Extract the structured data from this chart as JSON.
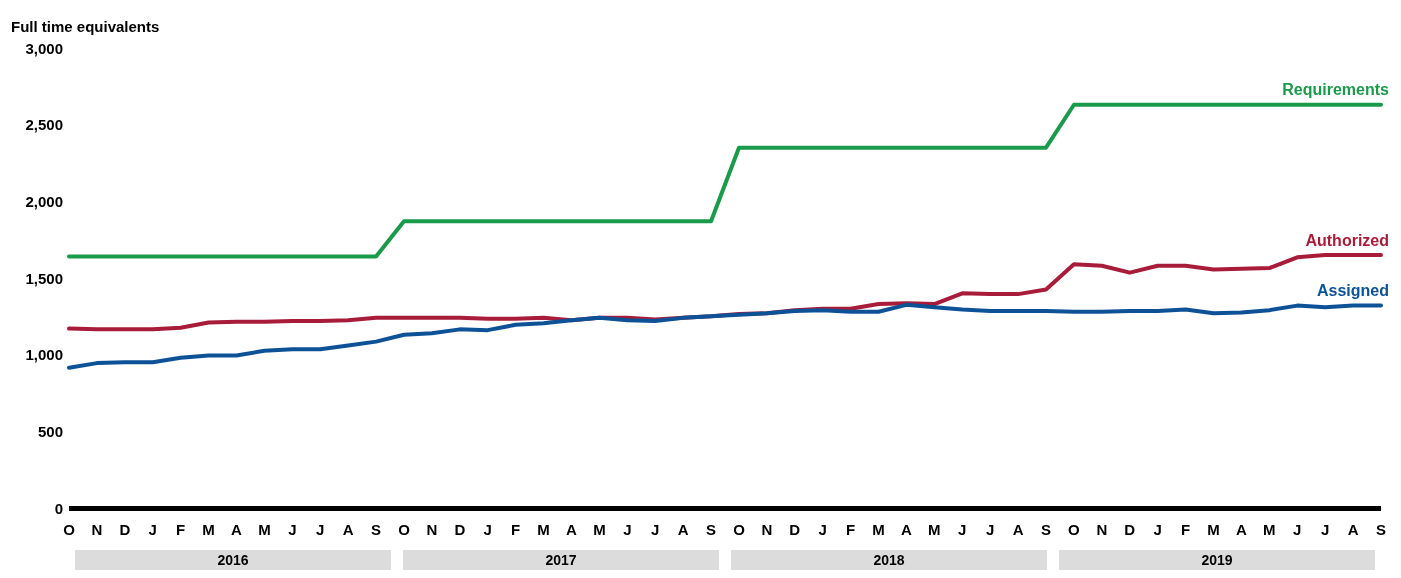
{
  "chart_data": {
    "type": "line",
    "ylabel": "Full time equivalents",
    "categories": [
      "O",
      "N",
      "D",
      "J",
      "F",
      "M",
      "A",
      "M",
      "J",
      "J",
      "A",
      "S",
      "O",
      "N",
      "D",
      "J",
      "F",
      "M",
      "A",
      "M",
      "J",
      "J",
      "A",
      "S",
      "O",
      "N",
      "D",
      "J",
      "F",
      "M",
      "A",
      "M",
      "J",
      "J",
      "A",
      "S",
      "O",
      "N",
      "D",
      "J",
      "F",
      "M",
      "A",
      "M",
      "J",
      "J",
      "A",
      "S"
    ],
    "annotations": [
      "2016",
      "2017",
      "2018",
      "2019"
    ],
    "series": [
      {
        "name": "Requirements",
        "color": "#1a9a4b",
        "values": [
          1640,
          1640,
          1640,
          1640,
          1640,
          1640,
          1640,
          1640,
          1640,
          1640,
          1640,
          1640,
          1870,
          1870,
          1870,
          1870,
          1870,
          1870,
          1870,
          1870,
          1870,
          1870,
          1870,
          1870,
          2350,
          2350,
          2350,
          2350,
          2350,
          2350,
          2350,
          2350,
          2350,
          2350,
          2350,
          2350,
          2630,
          2630,
          2630,
          2630,
          2630,
          2630,
          2630,
          2630,
          2630,
          2630,
          2630,
          2630
        ]
      },
      {
        "name": "Authorized",
        "color": "#a81c3a",
        "values": [
          1170,
          1165,
          1165,
          1165,
          1175,
          1210,
          1215,
          1215,
          1220,
          1220,
          1225,
          1240,
          1240,
          1240,
          1240,
          1235,
          1235,
          1240,
          1225,
          1240,
          1240,
          1230,
          1240,
          1250,
          1265,
          1270,
          1290,
          1300,
          1300,
          1330,
          1335,
          1330,
          1400,
          1395,
          1395,
          1425,
          1590,
          1580,
          1535,
          1580,
          1580,
          1555,
          1560,
          1565,
          1635,
          1650,
          1650,
          1650
        ]
      },
      {
        "name": "Assigned",
        "color": "#0d5297",
        "values": [
          915,
          945,
          950,
          950,
          980,
          995,
          995,
          1025,
          1035,
          1035,
          1060,
          1085,
          1130,
          1140,
          1165,
          1160,
          1195,
          1205,
          1225,
          1240,
          1225,
          1220,
          1240,
          1250,
          1260,
          1270,
          1285,
          1290,
          1280,
          1280,
          1325,
          1310,
          1295,
          1285,
          1285,
          1285,
          1280,
          1280,
          1285,
          1285,
          1295,
          1270,
          1275,
          1290,
          1320,
          1310,
          1320,
          1320
        ]
      }
    ],
    "ylim": [
      0,
      3000
    ],
    "yticks": [
      0,
      500,
      {
        "value": 1000,
        "label": "1,000"
      },
      {
        "value": 1500,
        "label": "1,500"
      },
      {
        "value": 2000,
        "label": "2,000"
      },
      {
        "value": 2500,
        "label": "2,500"
      },
      {
        "value": 3000,
        "label": "3,000"
      }
    ],
    "grid": false,
    "marker": "none",
    "line_style": "solid"
  }
}
